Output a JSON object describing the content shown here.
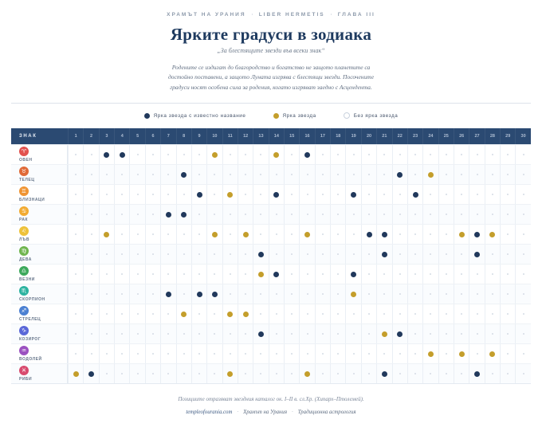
{
  "header": {
    "meta": [
      "ХРАМЪТ НА УРАНИЯ",
      "LIBER HERMETIS",
      "ГЛАВА III"
    ],
    "meta_separator": "·",
    "title": "Ярките градуси в зодиака",
    "subtitle": "„За блестящите звезди във всеки знак“",
    "intro": "Родените се издигат до благородство и богатство не защото планетите са достойно поставени, а защото Луната изгрява с блестящи звезди. Посочените градуси носят особена сила за родения, когато изгряват заедно с Асцендента."
  },
  "legend": [
    {
      "key": "named",
      "label": "Ярка звезда с известно название"
    },
    {
      "key": "bright",
      "label": "Ярка звезда"
    },
    {
      "key": "none",
      "label": "Без ярка звезда"
    }
  ],
  "table": {
    "sign_header": "ЗНАК"
  },
  "chart_data": {
    "type": "table",
    "title": "Ярките градуси в зодиака",
    "subtitle": "За блестящите звезди във всеки знак",
    "columns": [
      1,
      2,
      3,
      4,
      5,
      6,
      7,
      8,
      9,
      10,
      11,
      12,
      13,
      14,
      15,
      16,
      17,
      18,
      19,
      20,
      21,
      22,
      23,
      24,
      25,
      26,
      27,
      28,
      29,
      30
    ],
    "legend_position": "top-center",
    "rows": [
      {
        "label": "ОВЕН",
        "glyph": "♈",
        "color": "#e2524e",
        "named_star_degrees": [
          3,
          4,
          16
        ],
        "bright_star_degrees": [
          10,
          14
        ]
      },
      {
        "label": "ТЕЛЕЦ",
        "glyph": "♉",
        "color": "#e06a38",
        "named_star_degrees": [
          8,
          22
        ],
        "bright_star_degrees": [
          24
        ]
      },
      {
        "label": "БЛИЗНАЦИ",
        "glyph": "♊",
        "color": "#ef9432",
        "named_star_degrees": [
          9,
          14,
          19,
          23
        ],
        "bright_star_degrees": [
          11
        ]
      },
      {
        "label": "РАК",
        "glyph": "♋",
        "color": "#f2ab31",
        "named_star_degrees": [
          7,
          8
        ],
        "bright_star_degrees": []
      },
      {
        "label": "ЛЪВ",
        "glyph": "♌",
        "color": "#eec23a",
        "named_star_degrees": [
          20,
          21,
          27
        ],
        "bright_star_degrees": [
          3,
          10,
          12,
          16,
          26,
          28
        ]
      },
      {
        "label": "ДЕВА",
        "glyph": "♍",
        "color": "#6fb54e",
        "named_star_degrees": [
          13,
          21,
          27
        ],
        "bright_star_degrees": []
      },
      {
        "label": "ВЕЗНИ",
        "glyph": "♎",
        "color": "#3da95c",
        "named_star_degrees": [
          14,
          19
        ],
        "bright_star_degrees": [
          13
        ]
      },
      {
        "label": "СКОРПИОН",
        "glyph": "♏",
        "color": "#2cb3a0",
        "named_star_degrees": [
          7,
          9,
          10
        ],
        "bright_star_degrees": [
          19
        ]
      },
      {
        "label": "СТРЕЛЕЦ",
        "glyph": "♐",
        "color": "#4b80d2",
        "named_star_degrees": [],
        "bright_star_degrees": [
          8,
          11,
          12
        ]
      },
      {
        "label": "КОЗИРОГ",
        "glyph": "♑",
        "color": "#5a67d8",
        "named_star_degrees": [
          13,
          22
        ],
        "bright_star_degrees": [
          21
        ]
      },
      {
        "label": "ВОДОЛЕЙ",
        "glyph": "♒",
        "color": "#9b51c0",
        "named_star_degrees": [],
        "bright_star_degrees": [
          24,
          26,
          28
        ]
      },
      {
        "label": "РИБИ",
        "glyph": "♓",
        "color": "#d84a6e",
        "named_star_degrees": [
          2,
          21,
          27
        ],
        "bright_star_degrees": [
          1,
          11,
          16
        ]
      }
    ]
  },
  "footer": {
    "note": "Позициите отразяват звездния каталог ок. I–II в. сл.Хр. (Хипарх–Птолемей).",
    "site": "templeofourania.com",
    "items": [
      "Храмът на Урания",
      "Традиционна астрология"
    ],
    "separator": "·"
  },
  "colors": {
    "accent_navy": "#1e3a5f",
    "header_bar": "#2b4a72",
    "named_dot": "#21395c",
    "bright_dot": "#c49e2b",
    "empty_dot": "#d4dbe5"
  }
}
